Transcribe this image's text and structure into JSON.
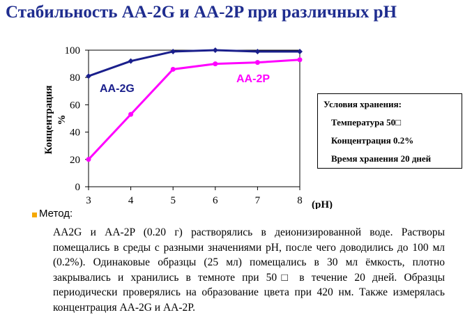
{
  "title": "Стабильность AA-2G и AA-2P при различных рН",
  "chart_data": {
    "type": "line",
    "x": [
      3,
      4,
      5,
      6,
      7,
      8
    ],
    "xlim": [
      3,
      8
    ],
    "ylim": [
      0,
      100
    ],
    "xticks": [
      "3",
      "4",
      "5",
      "6",
      "7",
      "8"
    ],
    "yticks": [
      "0",
      "20",
      "40",
      "60",
      "80",
      "100"
    ],
    "xlabel": "(pH)",
    "ylabel": "Концентрация %",
    "grid": false,
    "series": [
      {
        "name": "AA-2G",
        "color": "#1a1f8c",
        "marker": "diamond",
        "values": [
          81,
          92,
          99,
          100,
          99,
          99
        ]
      },
      {
        "name": "AA-2P",
        "color": "#ff00ff",
        "marker": "circle",
        "values": [
          20,
          53,
          86,
          90,
          91,
          93
        ]
      }
    ]
  },
  "conditions": {
    "title": "Условия хранения:",
    "lines": [
      "Температура 50□",
      "Концентрация 0.2%",
      "Время хранения 20 дней"
    ]
  },
  "method": {
    "label": "Метод:",
    "bullet_color": "#f5a800",
    "text": "AA2G и AA-2P (0.20 г) растворялись в деионизированной воде. Растворы помещались в среды с разными значениями рН, после чего доводились до 100 мл (0.2%). Одинаковые образцы (25 мл) помещались в 30 мл ёмкость, плотно закрывались и хранились в темноте при 50□ в течение 20 дней. Образцы периодически проверялись на образование цвета при 420 нм. Также измерялась концентрация AA-2G и AA-2P."
  }
}
